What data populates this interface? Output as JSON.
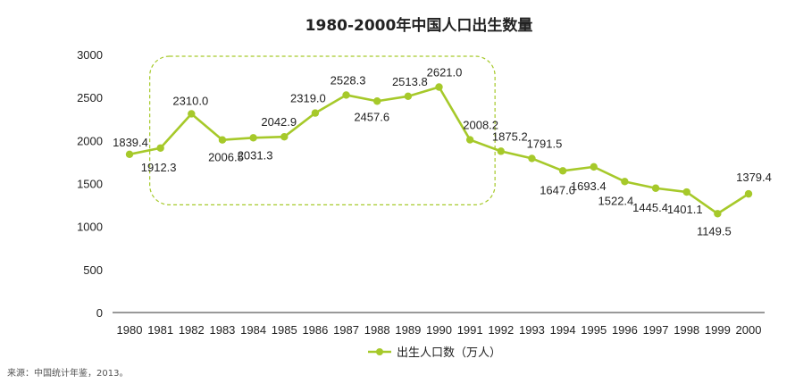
{
  "chart_data": {
    "type": "line",
    "title": "1980-2000年中国人口出生数量",
    "categories": [
      "1980",
      "1981",
      "1982",
      "1983",
      "1984",
      "1985",
      "1986",
      "1987",
      "1988",
      "1989",
      "1990",
      "1991",
      "1992",
      "1993",
      "1994",
      "1995",
      "1996",
      "1997",
      "1998",
      "1999",
      "2000"
    ],
    "series": [
      {
        "name": "出生人口数（万人）",
        "values": [
          1839.4,
          1912.3,
          2310.0,
          2006.5,
          2031.3,
          2042.9,
          2319.0,
          2528.3,
          2457.6,
          2513.8,
          2621.0,
          2008.2,
          1875.2,
          1791.5,
          1647.0,
          1693.4,
          1522.4,
          1445.4,
          1401.1,
          1149.5,
          1379.4
        ],
        "labels": [
          "1839.4",
          "1912.3",
          "2310.0",
          "2006.5",
          "2031.3",
          "2042.9",
          "2319.0",
          "2528.3",
          "2457.6",
          "2513.8",
          "2621.0",
          "2008.2",
          "1875.2",
          "1791.5",
          "1647.0",
          "1693.4",
          "1522.4",
          "1445.4",
          "1401.1",
          "1149.5",
          "1379.4"
        ],
        "color": "#a6c92a"
      }
    ],
    "yticks": [
      "0",
      "500",
      "1000",
      "1500",
      "2000",
      "2500",
      "3000"
    ],
    "ylim": [
      0,
      3000
    ],
    "grid": false,
    "legend_position": "bottom",
    "highlight_box": {
      "from": "1981",
      "to": "1991",
      "ymin": 1200,
      "ymax": 3000,
      "color": "#a6c92a",
      "style": "dashed"
    }
  },
  "source_note": "来源：中国统计年鉴，2013。"
}
